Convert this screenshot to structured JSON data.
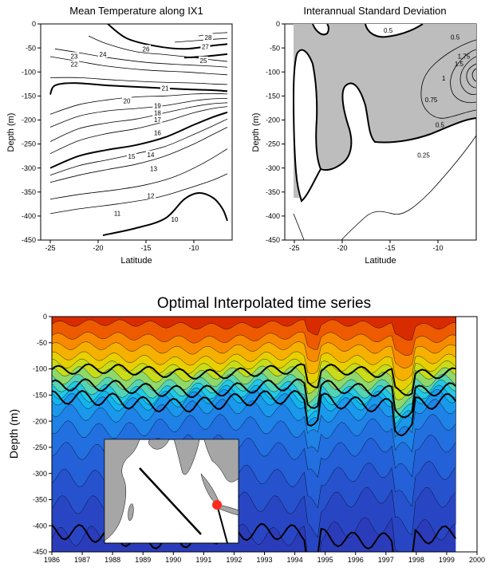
{
  "chart_data": [
    {
      "type": "contour",
      "title": "Mean Temperature along IX1",
      "xlabel": "Latitude",
      "ylabel": "Depth (m)",
      "xlim": [
        -26,
        -6
      ],
      "ylim": [
        0,
        -450
      ],
      "xticks": [
        -25,
        -20,
        -15,
        -10
      ],
      "yticks": [
        0,
        -50,
        -100,
        -150,
        -200,
        -250,
        -300,
        -350,
        -400,
        -450
      ],
      "grid": false,
      "contours": [
        {
          "level": 28,
          "bold": false,
          "points": [
            [
              -9.5,
              -25
            ],
            [
              -8,
              -20
            ],
            [
              -6.5,
              -18
            ]
          ],
          "label_at": [
            -8.5,
            -28
          ]
        },
        {
          "level": 27,
          "bold": false,
          "points": [
            [
              -12,
              -38
            ],
            [
              -10,
              -35
            ],
            [
              -8,
              -32
            ],
            [
              -6.5,
              -30
            ]
          ],
          "label_at": [
            -8.8,
            -47
          ]
        },
        {
          "level": 26,
          "bold": true,
          "points": [
            [
              -19,
              0
            ],
            [
              -17,
              -30
            ],
            [
              -14,
              -46
            ],
            [
              -11,
              -52
            ],
            [
              -8,
              -45
            ],
            [
              -6.5,
              -42
            ]
          ],
          "label_at": [
            -15,
            -52
          ]
        },
        {
          "level": 25,
          "bold": true,
          "points": [
            [
              -11,
              -70
            ],
            [
              -9,
              -68
            ],
            [
              -7.5,
              -65
            ],
            [
              -6.5,
              -63
            ]
          ],
          "label_at": [
            -9,
            -76
          ]
        },
        {
          "level": 24,
          "bold": false,
          "points": [
            [
              -21,
              -25
            ],
            [
              -19,
              -42
            ],
            [
              -16,
              -58
            ],
            [
              -13,
              -64
            ],
            [
              -10,
              -70
            ],
            [
              -8,
              -75
            ],
            [
              -6.5,
              -78
            ]
          ],
          "label_at": [
            -19.5,
            -63
          ]
        },
        {
          "level": 23,
          "bold": false,
          "points": [
            [
              -24.5,
              -52
            ],
            [
              -22,
              -60
            ],
            [
              -19,
              -70
            ],
            [
              -15,
              -80
            ],
            [
              -11,
              -85
            ],
            [
              -8,
              -88
            ],
            [
              -6.5,
              -90
            ]
          ],
          "label_at": [
            -22.5,
            -67
          ]
        },
        {
          "level": 22,
          "bold": false,
          "points": [
            [
              -25,
              -68
            ],
            [
              -22,
              -78
            ],
            [
              -19,
              -88
            ],
            [
              -15,
              -96
            ],
            [
              -11,
              -100
            ],
            [
              -8,
              -104
            ],
            [
              -6.5,
              -106
            ]
          ],
          "label_at": [
            -22.5,
            -84
          ]
        },
        {
          "level": 21,
          "bold": false,
          "points": [
            [
              -25,
              -112
            ],
            [
              -22,
              -112
            ],
            [
              -18,
              -117
            ],
            [
              -14,
              -121
            ],
            [
              -10,
              -123
            ],
            [
              -8,
              -125
            ],
            [
              -6.5,
              -126
            ]
          ],
          "label_at": [
            -13,
            -134
          ]
        },
        {
          "level": 20,
          "bold": true,
          "points": [
            [
              -25,
              -147
            ],
            [
              -24.5,
              -128
            ],
            [
              -22.5,
              -123
            ],
            [
              -19,
              -128
            ],
            [
              -15,
              -132
            ],
            [
              -11,
              -136
            ],
            [
              -8,
              -138
            ],
            [
              -6.5,
              -140
            ]
          ],
          "label_at": [
            -17,
            -160
          ]
        },
        {
          "level": 19,
          "bold": false,
          "points": [
            [
              -25,
              -188
            ],
            [
              -22,
              -168
            ],
            [
              -19,
              -158
            ],
            [
              -16,
              -152
            ],
            [
              -13,
              -150
            ],
            [
              -10,
              -146
            ],
            [
              -8,
              -145
            ],
            [
              -6.5,
              -146
            ]
          ],
          "label_at": [
            -13.8,
            -170
          ]
        },
        {
          "level": 18,
          "bold": false,
          "points": [
            [
              -25,
              -215
            ],
            [
              -22,
              -192
            ],
            [
              -19,
              -181
            ],
            [
              -16,
              -176
            ],
            [
              -13,
              -170
            ],
            [
              -10,
              -160
            ],
            [
              -8,
              -156
            ],
            [
              -6.5,
              -155
            ]
          ],
          "label_at": [
            -13.8,
            -185
          ]
        },
        {
          "level": 17,
          "bold": false,
          "points": [
            [
              -25,
              -245
            ],
            [
              -22,
              -218
            ],
            [
              -19,
              -206
            ],
            [
              -16,
              -198
            ],
            [
              -13,
              -185
            ],
            [
              -10,
              -172
            ],
            [
              -8,
              -166
            ],
            [
              -6.5,
              -164
            ]
          ],
          "label_at": [
            -13.8,
            -199
          ]
        },
        {
          "level": 16,
          "bold": false,
          "points": [
            [
              -25,
              -270
            ],
            [
              -22,
              -243
            ],
            [
              -19,
              -228
            ],
            [
              -16,
              -218
            ],
            [
              -13,
              -203
            ],
            [
              -10,
              -185
            ],
            [
              -8,
              -176
            ],
            [
              -6.5,
              -172
            ]
          ],
          "label_at": [
            -13.8,
            -227
          ]
        },
        {
          "level": 15,
          "bold": true,
          "points": [
            [
              -25,
              -300
            ],
            [
              -22,
              -275
            ],
            [
              -19,
              -262
            ],
            [
              -16,
              -252
            ],
            [
              -13,
              -236
            ],
            [
              -10,
              -210
            ],
            [
              -8,
              -194
            ],
            [
              -6.5,
              -184
            ]
          ],
          "label_at": [
            -16.5,
            -276
          ]
        },
        {
          "level": 14,
          "bold": false,
          "points": [
            [
              -25,
              -315
            ],
            [
              -22,
              -295
            ],
            [
              -19,
              -283
            ],
            [
              -16,
              -270
            ],
            [
              -13,
              -255
            ],
            [
              -10,
              -230
            ],
            [
              -8,
              -212
            ],
            [
              -6.5,
              -198
            ]
          ],
          "label_at": [
            -14.5,
            -272
          ]
        },
        {
          "level": 13,
          "bold": false,
          "points": [
            [
              -25,
              -330
            ],
            [
              -22,
              -315
            ],
            [
              -19,
              -303
            ],
            [
              -16,
              -292
            ],
            [
              -13,
              -275
            ],
            [
              -10,
              -250
            ],
            [
              -8,
              -230
            ],
            [
              -6.5,
              -215
            ]
          ],
          "label_at": [
            -14.2,
            -301
          ]
        },
        {
          "level": 12,
          "bold": false,
          "points": [
            [
              -25,
              -365
            ],
            [
              -22,
              -355
            ],
            [
              -18,
              -345
            ],
            [
              -15,
              -335
            ],
            [
              -12,
              -318
            ],
            [
              -9,
              -290
            ],
            [
              -6.5,
              -260
            ]
          ],
          "label_at": [
            -14.5,
            -358
          ]
        },
        {
          "level": 11,
          "bold": false,
          "points": [
            [
              -25,
              -395
            ],
            [
              -22,
              -385
            ],
            [
              -18,
              -375
            ],
            [
              -14,
              -362
            ],
            [
              -11,
              -345
            ],
            [
              -8,
              -325
            ],
            [
              -6.5,
              -312
            ]
          ],
          "label_at": [
            -18,
            -394
          ]
        },
        {
          "level": 10,
          "bold": true,
          "points": [
            [
              -19.5,
              -440
            ],
            [
              -16,
              -425
            ],
            [
              -13,
              -405
            ],
            [
              -11,
              -365
            ],
            [
              -9.5,
              -352
            ],
            [
              -8,
              -362
            ],
            [
              -7,
              -385
            ],
            [
              -6.5,
              -410
            ]
          ],
          "label_at": [
            -12,
            -407
          ]
        }
      ]
    },
    {
      "type": "contour",
      "title": "Interannual Standard Deviation",
      "xlabel": "Latitude",
      "ylabel": "Depth (m)",
      "xlim": [
        -26,
        -6
      ],
      "ylim": [
        0,
        -450
      ],
      "xticks": [
        -25,
        -20,
        -15,
        -10
      ],
      "yticks": [
        0,
        -50,
        -100,
        -150,
        -200,
        -250,
        -300,
        -350,
        -400,
        -450
      ],
      "grid": false,
      "contour_labels": [
        {
          "text": "0.5",
          "at": [
            -15.2,
            -18
          ]
        },
        {
          "text": "0.5",
          "at": [
            -8.2,
            -32
          ]
        },
        {
          "text": "1.75",
          "at": [
            -7.3,
            -72
          ]
        },
        {
          "text": "1.5",
          "at": [
            -7.8,
            -88
          ]
        },
        {
          "text": "1",
          "at": [
            -9.4,
            -118
          ]
        },
        {
          "text": "0.75",
          "at": [
            -10.7,
            -163
          ]
        },
        {
          "text": "0.5",
          "at": [
            -9.8,
            -215
          ]
        },
        {
          "text": "0.25",
          "at": [
            -11.5,
            -278
          ]
        }
      ]
    },
    {
      "type": "contour",
      "title": "Optimal Interpolated time series",
      "xlabel": "",
      "ylabel": "Depth (m)",
      "xlim": [
        1986,
        2000
      ],
      "ylim": [
        0,
        -450
      ],
      "xticks": [
        1986,
        1987,
        1988,
        1989,
        1990,
        1991,
        1992,
        1993,
        1994,
        1995,
        1996,
        1997,
        1998,
        1999,
        2000
      ],
      "yticks": [
        0,
        -50,
        -100,
        -150,
        -200,
        -250,
        -300,
        -350,
        -400,
        -450
      ],
      "data_end": 1999.3,
      "grid": false,
      "mean_isotherm_depths": [
        -15,
        -40,
        -60,
        -80,
        -95,
        -110,
        -125,
        -138,
        -150,
        -160,
        -180,
        -210,
        -250,
        -300,
        -350,
        -410
      ],
      "bold_isotherm_mean_depths": [
        -105,
        -137,
        -162,
        -420
      ],
      "inset": "map with section line and red dot"
    }
  ]
}
